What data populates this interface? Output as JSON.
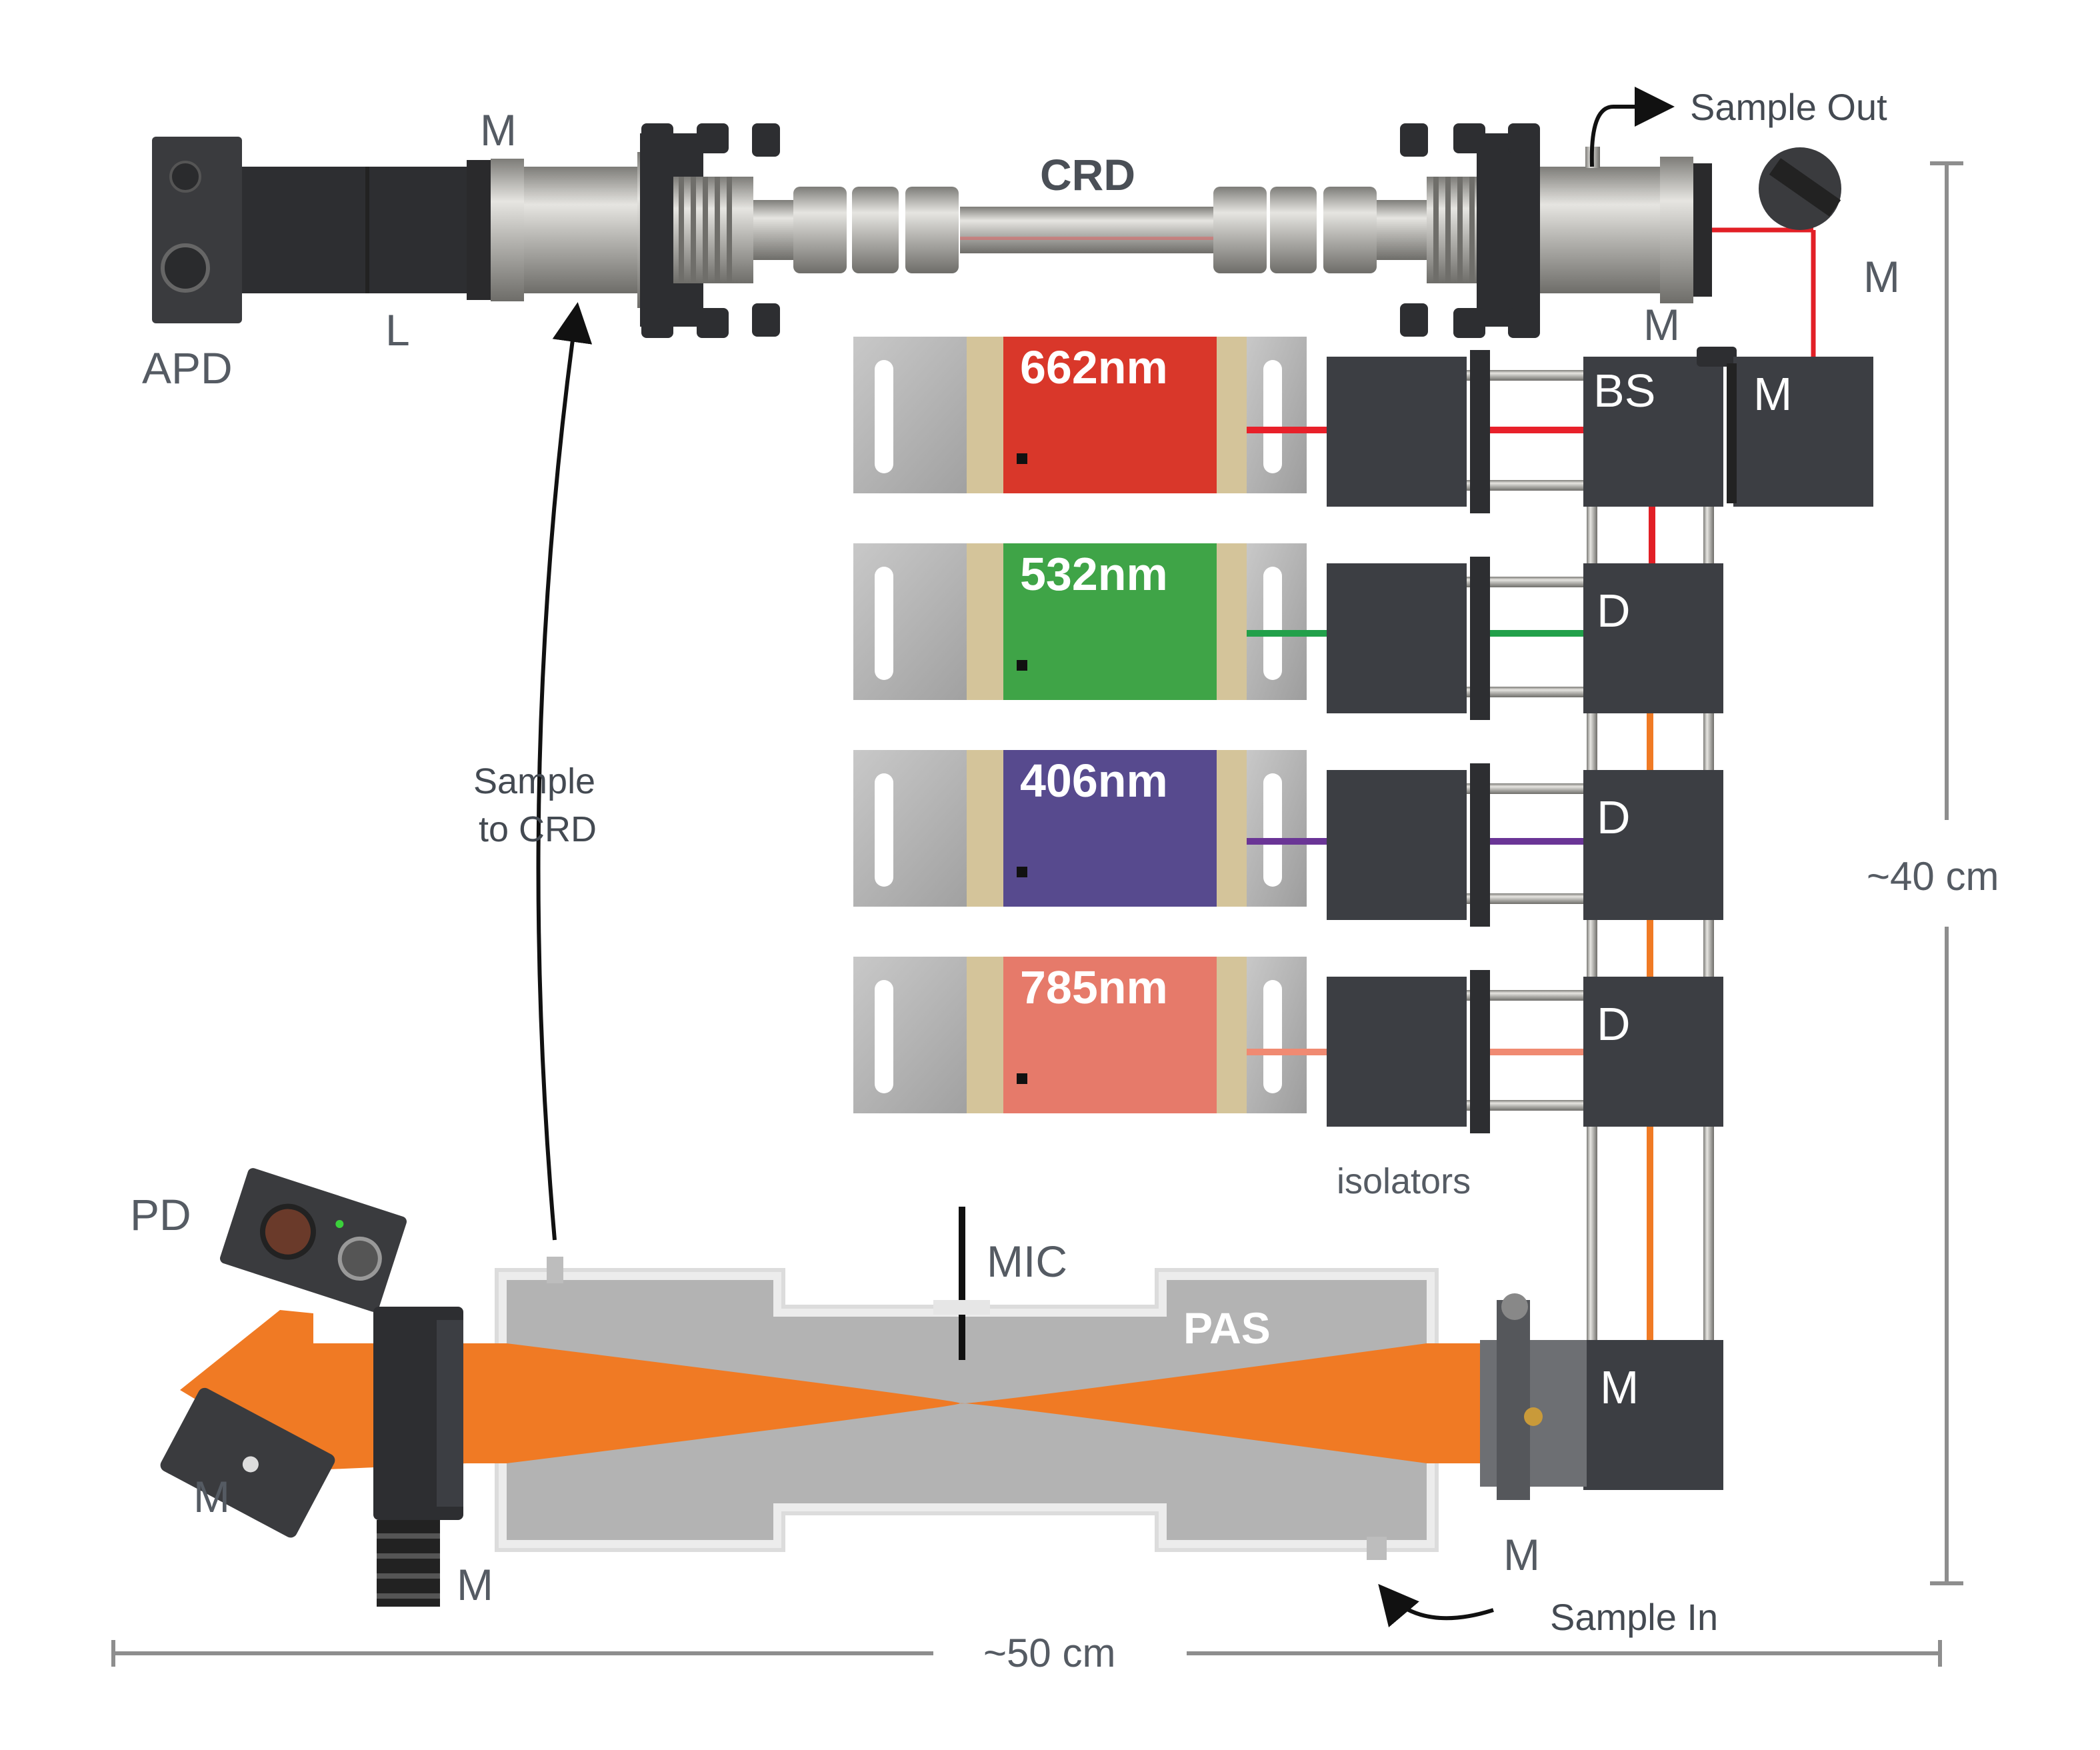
{
  "labels": {
    "apd": "APD",
    "lens": "L",
    "mirror": "M",
    "crd": "CRD",
    "sample_out": "Sample Out",
    "beam_splitter": "BS",
    "dichroic": "D",
    "sample_to_crd_line1": "Sample",
    "sample_to_crd_line2": "to CRD",
    "size_vertical": "~40 cm",
    "size_horizontal": "~50 cm",
    "isolators": "isolators",
    "photodiode": "PD",
    "microphone": "MIC",
    "pas": "PAS",
    "sample_in": "Sample In"
  },
  "lasers": [
    {
      "label": "662nm",
      "color": "#d9372a",
      "beam": "#e8202a"
    },
    {
      "label": "532nm",
      "color": "#3fa447",
      "beam": "#22a04a"
    },
    {
      "label": "406nm",
      "color": "#574a8e",
      "beam": "#6a3596"
    },
    {
      "label": "785nm",
      "color": "#e67a6a",
      "beam": "#f08a72"
    }
  ],
  "colors": {
    "combined_beam": "#f07a24",
    "block": "#3c3e43",
    "steel": "#b9b8b4",
    "cell": "#b3b3b3",
    "ruler": "#8e8e8e"
  }
}
